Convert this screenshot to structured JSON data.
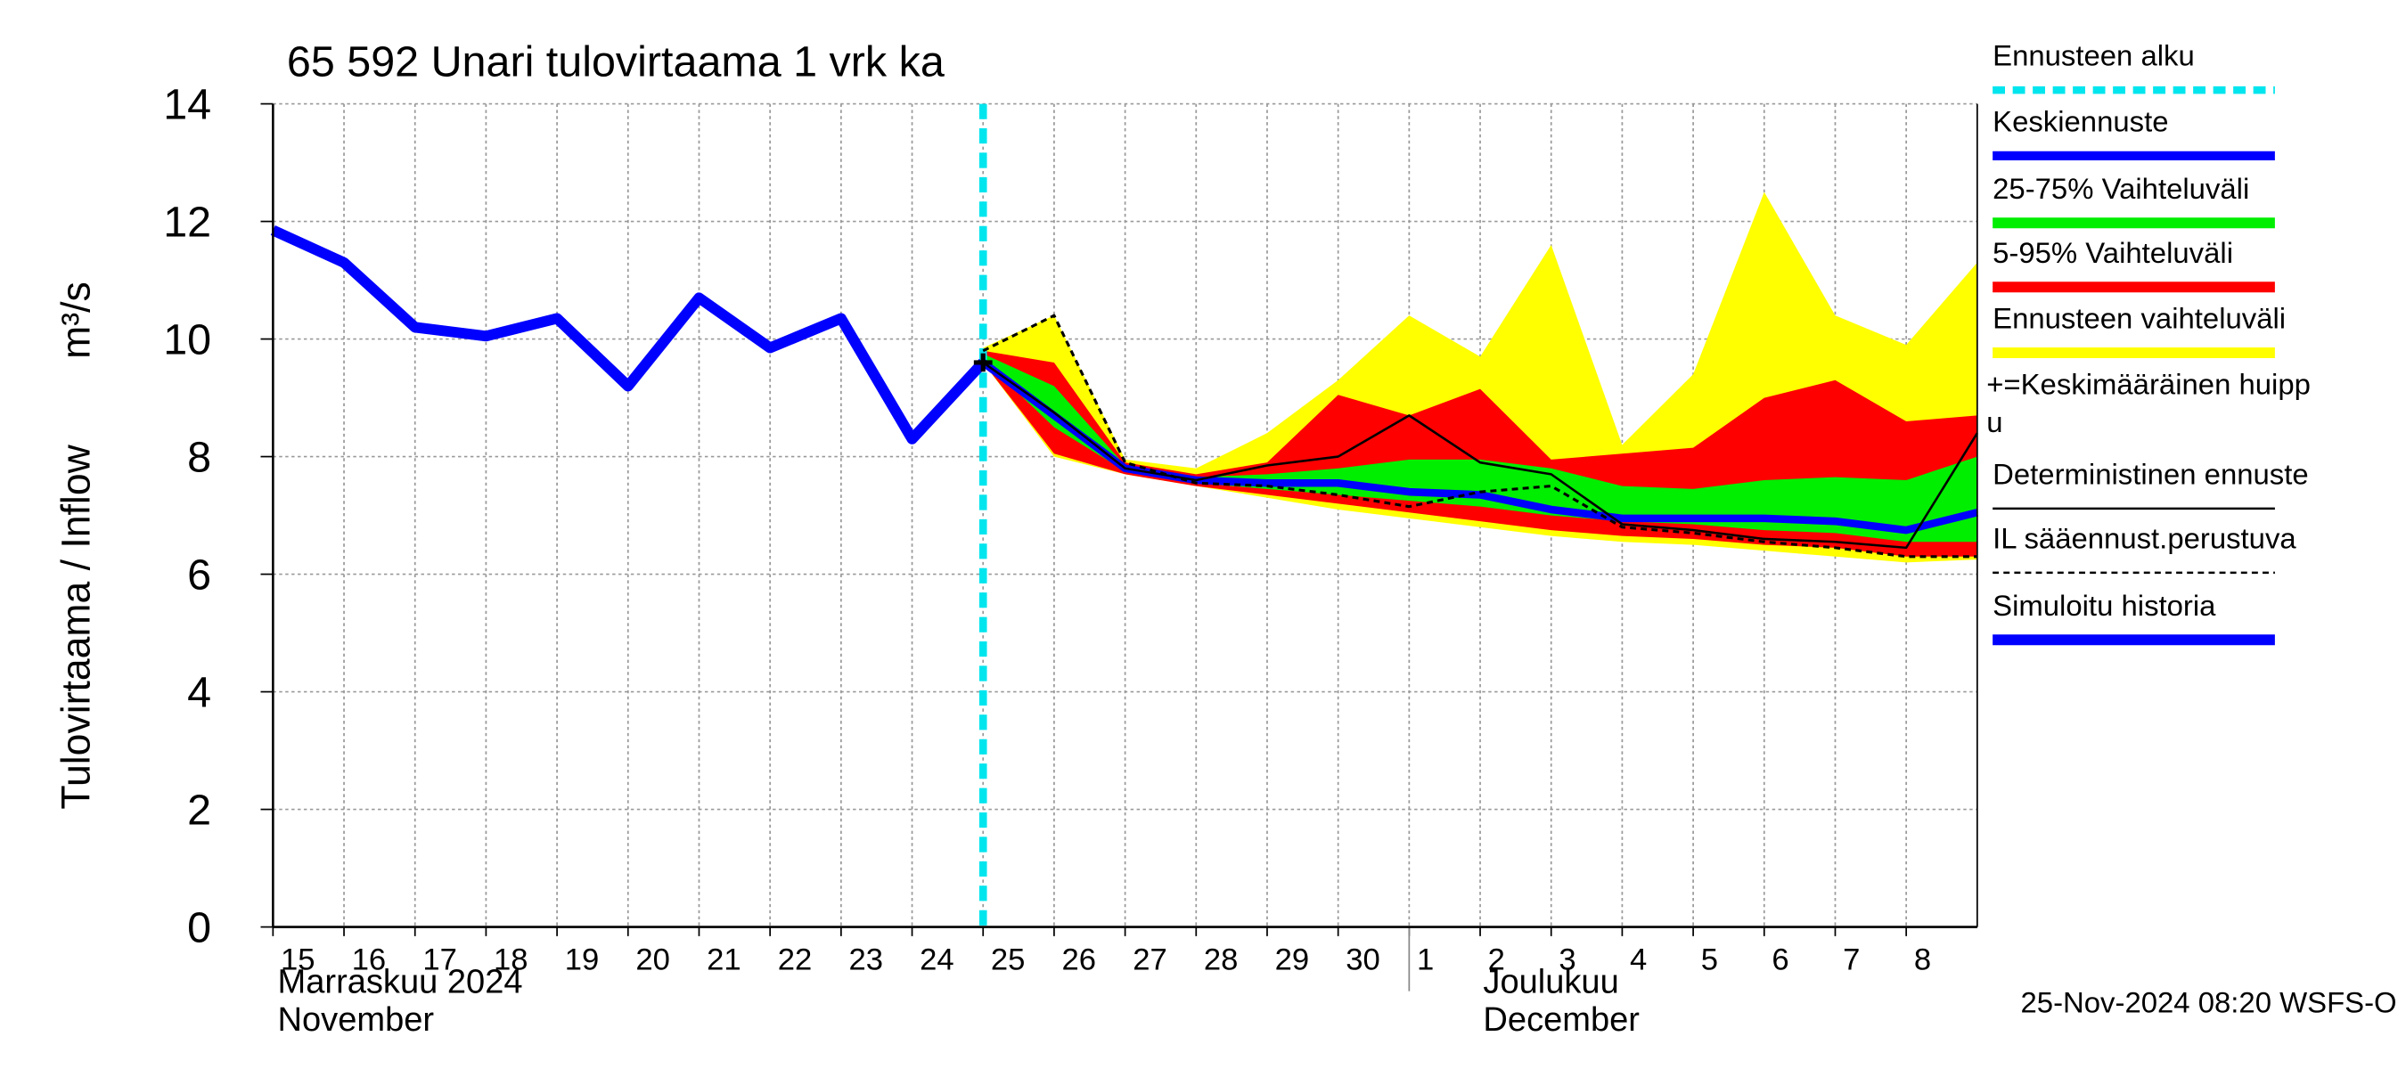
{
  "chart_data": {
    "type": "line",
    "title": "65 592 Unari tulovirtaama 1 vrk ka",
    "y_label": "Tulovirtaama / Inflow",
    "y_unit": "m³/s",
    "xlim": [
      "2024-11-15",
      "2024-12-09"
    ],
    "xticks": [
      {
        "value": "2024-11-15",
        "label": "15"
      },
      {
        "value": "2024-11-16",
        "label": "16"
      },
      {
        "value": "2024-11-17",
        "label": "17"
      },
      {
        "value": "2024-11-18",
        "label": "18"
      },
      {
        "value": "2024-11-19",
        "label": "19"
      },
      {
        "value": "2024-11-20",
        "label": "20"
      },
      {
        "value": "2024-11-21",
        "label": "21"
      },
      {
        "value": "2024-11-22",
        "label": "22"
      },
      {
        "value": "2024-11-23",
        "label": "23"
      },
      {
        "value": "2024-11-24",
        "label": "24"
      },
      {
        "value": "2024-11-25",
        "label": "25"
      },
      {
        "value": "2024-11-26",
        "label": "26"
      },
      {
        "value": "2024-11-27",
        "label": "27"
      },
      {
        "value": "2024-11-28",
        "label": "28"
      },
      {
        "value": "2024-11-29",
        "label": "29"
      },
      {
        "value": "2024-11-30",
        "label": "30"
      },
      {
        "value": "2024-12-01",
        "label": "1"
      },
      {
        "value": "2024-12-02",
        "label": "2"
      },
      {
        "value": "2024-12-03",
        "label": "3"
      },
      {
        "value": "2024-12-04",
        "label": "4"
      },
      {
        "value": "2024-12-05",
        "label": "5"
      },
      {
        "value": "2024-12-06",
        "label": "6"
      },
      {
        "value": "2024-12-07",
        "label": "7"
      },
      {
        "value": "2024-12-08",
        "label": "8"
      }
    ],
    "months": [
      {
        "x": "2024-11-15",
        "labels": [
          "Marraskuu 2024",
          "November"
        ]
      },
      {
        "x": "2024-12-01",
        "labels": [
          "Joulukuu",
          "December"
        ]
      }
    ],
    "ylim": [
      0,
      14
    ],
    "yticks": [
      0,
      2,
      4,
      6,
      8,
      10,
      12,
      14
    ],
    "grid": true,
    "forecast_start": {
      "name": "Ennusteen alku",
      "x": "2024-11-25",
      "color": "#00e5ee"
    },
    "bands": [
      {
        "name": "Ennusteen vaihteluväli",
        "color": "#ffff00",
        "x": [
          "2024-11-25",
          "2024-11-26",
          "2024-11-27",
          "2024-11-28",
          "2024-11-29",
          "2024-11-30",
          "2024-12-01",
          "2024-12-02",
          "2024-12-03",
          "2024-12-04",
          "2024-12-05",
          "2024-12-06",
          "2024-12-07",
          "2024-12-08",
          "2024-12-09"
        ],
        "upper": [
          9.85,
          10.4,
          7.95,
          7.8,
          8.4,
          9.3,
          10.4,
          9.7,
          11.6,
          8.2,
          9.4,
          12.5,
          10.4,
          9.9,
          11.3
        ],
        "lower": [
          9.6,
          8.0,
          7.7,
          7.5,
          7.3,
          7.1,
          6.95,
          6.8,
          6.65,
          6.55,
          6.5,
          6.4,
          6.3,
          6.2,
          6.25
        ]
      },
      {
        "name": "5-95% Vaihteluväli",
        "color": "#ff0000",
        "x": [
          "2024-11-25",
          "2024-11-26",
          "2024-11-27",
          "2024-11-28",
          "2024-11-29",
          "2024-11-30",
          "2024-12-01",
          "2024-12-02",
          "2024-12-03",
          "2024-12-04",
          "2024-12-05",
          "2024-12-06",
          "2024-12-07",
          "2024-12-08",
          "2024-12-09"
        ],
        "upper": [
          9.8,
          9.6,
          7.9,
          7.7,
          7.9,
          9.05,
          8.7,
          9.15,
          7.95,
          8.05,
          8.15,
          9.0,
          9.3,
          8.6,
          8.7
        ],
        "lower": [
          9.6,
          8.05,
          7.7,
          7.5,
          7.35,
          7.2,
          7.05,
          6.9,
          6.75,
          6.65,
          6.6,
          6.5,
          6.45,
          6.3,
          6.3
        ]
      },
      {
        "name": "25-75% Vaihteluväli",
        "color": "#00ee00",
        "x": [
          "2024-11-25",
          "2024-11-26",
          "2024-11-27",
          "2024-11-28",
          "2024-11-29",
          "2024-11-30",
          "2024-12-01",
          "2024-12-02",
          "2024-12-03",
          "2024-12-04",
          "2024-12-05",
          "2024-12-06",
          "2024-12-07",
          "2024-12-08",
          "2024-12-09"
        ],
        "upper": [
          9.75,
          9.2,
          7.85,
          7.65,
          7.7,
          7.8,
          7.95,
          7.95,
          7.8,
          7.5,
          7.45,
          7.6,
          7.65,
          7.6,
          8.0
        ],
        "lower": [
          9.65,
          8.5,
          7.75,
          7.55,
          7.45,
          7.35,
          7.25,
          7.15,
          7.0,
          6.9,
          6.85,
          6.75,
          6.7,
          6.55,
          6.55
        ]
      }
    ],
    "series": [
      {
        "name": "Simuloitu historia",
        "color": "#0000ff",
        "x": [
          "2024-11-15",
          "2024-11-16",
          "2024-11-17",
          "2024-11-18",
          "2024-11-19",
          "2024-11-20",
          "2024-11-21",
          "2024-11-22",
          "2024-11-23",
          "2024-11-24",
          "2024-11-25"
        ],
        "values": [
          11.85,
          11.3,
          10.2,
          10.05,
          10.35,
          9.2,
          10.7,
          9.85,
          10.35,
          8.3,
          9.6
        ]
      },
      {
        "name": "Keskiennuste",
        "color": "#0000ff",
        "x": [
          "2024-11-25",
          "2024-11-26",
          "2024-11-27",
          "2024-11-28",
          "2024-11-29",
          "2024-11-30",
          "2024-12-01",
          "2024-12-02",
          "2024-12-03",
          "2024-12-04",
          "2024-12-05",
          "2024-12-06",
          "2024-12-07",
          "2024-12-08",
          "2024-12-09"
        ],
        "values": [
          9.6,
          8.7,
          7.8,
          7.6,
          7.55,
          7.55,
          7.4,
          7.35,
          7.1,
          6.95,
          6.95,
          6.95,
          6.9,
          6.75,
          7.05
        ]
      },
      {
        "name": "Deterministinen ennuste",
        "color": "#000000",
        "x": [
          "2024-11-25",
          "2024-11-26",
          "2024-11-27",
          "2024-11-28",
          "2024-11-29",
          "2024-11-30",
          "2024-12-01",
          "2024-12-02",
          "2024-12-03",
          "2024-12-04",
          "2024-12-05",
          "2024-12-06",
          "2024-12-07",
          "2024-12-08",
          "2024-12-09"
        ],
        "values": [
          9.6,
          8.75,
          7.8,
          7.6,
          7.85,
          8.0,
          8.7,
          7.9,
          7.7,
          6.85,
          6.75,
          6.6,
          6.55,
          6.45,
          8.4
        ]
      },
      {
        "name": "IL sääennust.perustuva",
        "color": "#000000",
        "dashed": true,
        "x": [
          "2024-11-25",
          "2024-11-26",
          "2024-11-27",
          "2024-11-28",
          "2024-11-29",
          "2024-11-30",
          "2024-12-01",
          "2024-12-02",
          "2024-12-03",
          "2024-12-04",
          "2024-12-05",
          "2024-12-06",
          "2024-12-07",
          "2024-12-08",
          "2024-12-09"
        ],
        "values": [
          9.8,
          10.4,
          7.9,
          7.55,
          7.5,
          7.35,
          7.15,
          7.4,
          7.5,
          6.8,
          6.7,
          6.55,
          6.45,
          6.3,
          6.3
        ]
      }
    ],
    "peak": {
      "name": [
        "+=Keskimääräinen huipp",
        "u"
      ],
      "x": "2024-11-25",
      "value": 9.6
    },
    "footer": "25-Nov-2024 08:20 WSFS-O"
  }
}
